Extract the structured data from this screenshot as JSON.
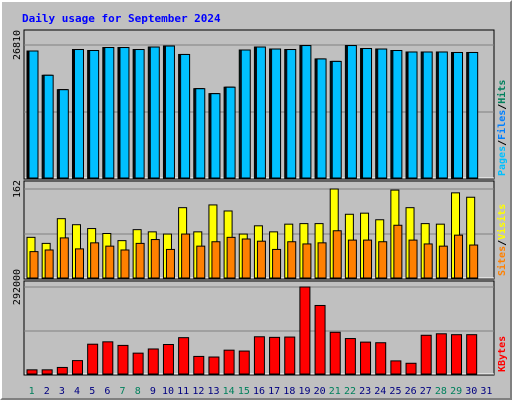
{
  "chart_data": {
    "type": "bar",
    "title": "Daily usage for September 2024",
    "categories": [
      "1",
      "2",
      "3",
      "4",
      "5",
      "6",
      "7",
      "8",
      "9",
      "10",
      "11",
      "12",
      "13",
      "14",
      "15",
      "16",
      "17",
      "18",
      "19",
      "20",
      "21",
      "22",
      "23",
      "24",
      "25",
      "26",
      "27",
      "28",
      "29",
      "30",
      "31"
    ],
    "weekend_days": [
      "1",
      "7",
      "8",
      "14",
      "15",
      "21",
      "22",
      "28",
      "29"
    ],
    "panels": [
      {
        "name": "hits-files",
        "axis_max_label": "26810",
        "axis_max": 26810,
        "axis_label_parts": [
          "Pages",
          "/",
          "Files",
          "/",
          "Hits"
        ],
        "series": [
          {
            "name": "Hits",
            "color": "#00805c",
            "values": [
              25600,
              20700,
              17800,
              25900,
              25700,
              26300,
              26300,
              25900,
              26400,
              26600,
              24900,
              18000,
              17000,
              18300,
              25800,
              26400,
              26000,
              25900,
              26700,
              24000,
              23500,
              26700,
              26100,
              26000,
              25700,
              25400,
              25400,
              25400,
              25300,
              25300,
              null
            ]
          },
          {
            "name": "Files",
            "color": "#0080ff",
            "values": [
              25600,
              20700,
              17800,
              25900,
              25700,
              26300,
              26300,
              25900,
              26400,
              26600,
              24900,
              18000,
              17000,
              18300,
              25800,
              26400,
              26000,
              25900,
              26700,
              24000,
              23500,
              26700,
              26100,
              26000,
              25700,
              25400,
              25400,
              25400,
              25300,
              25300,
              null
            ]
          },
          {
            "name": "Pages",
            "color": "#00c0ff",
            "values": [
              25600,
              20700,
              17800,
              25900,
              25700,
              26300,
              26300,
              25900,
              26400,
              26600,
              24900,
              18000,
              17000,
              18300,
              25800,
              26400,
              26000,
              25900,
              26700,
              24000,
              23500,
              26700,
              26100,
              26000,
              25700,
              25400,
              25400,
              25400,
              25300,
              25300,
              null
            ]
          }
        ]
      },
      {
        "name": "visits-sites",
        "axis_max_label": "162",
        "axis_max": 162,
        "axis_label_parts": [
          "Sites",
          "/",
          "Visits"
        ],
        "series": [
          {
            "name": "Visits",
            "color": "#ffff00",
            "values": [
              74,
              63,
              108,
              97,
              90,
              81,
              68,
              88,
              84,
              80,
              128,
              84,
              133,
              122,
              80,
              95,
              84,
              98,
              99,
              99,
              162,
              116,
              118,
              106,
              160,
              128,
              99,
              98,
              155,
              147,
              null
            ]
          },
          {
            "name": "Sites",
            "color": "#ff8000",
            "values": [
              48,
              51,
              73,
              53,
              64,
              58,
              51,
              63,
              70,
              52,
              80,
              58,
              66,
              74,
              71,
              67,
              52,
              66,
              62,
              64,
              86,
              69,
              69,
              66,
              96,
              69,
              62,
              58,
              78,
              60,
              null
            ]
          }
        ]
      },
      {
        "name": "kbytes",
        "axis_max_label": "292000",
        "axis_max": 292000,
        "axis_label_parts": [
          "KBytes"
        ],
        "series": [
          {
            "name": "KBytes",
            "color": "#ff0000",
            "values": [
              14000,
              14000,
              22000,
              45000,
              100000,
              108000,
              96000,
              70000,
              84000,
              99000,
              122000,
              59000,
              57000,
              80000,
              77000,
              125000,
              123000,
              124000,
              292000,
              230000,
              140000,
              119000,
              107000,
              105000,
              44000,
              36000,
              130000,
              135000,
              132000,
              132000,
              null
            ]
          }
        ]
      }
    ]
  },
  "colors": {
    "background": "#c0c0c0",
    "plot_background": "#c0c0c0",
    "title": "#0000ff",
    "grid": "#808080",
    "weekday_label": "#000080",
    "weekend_label": "#00805c"
  }
}
